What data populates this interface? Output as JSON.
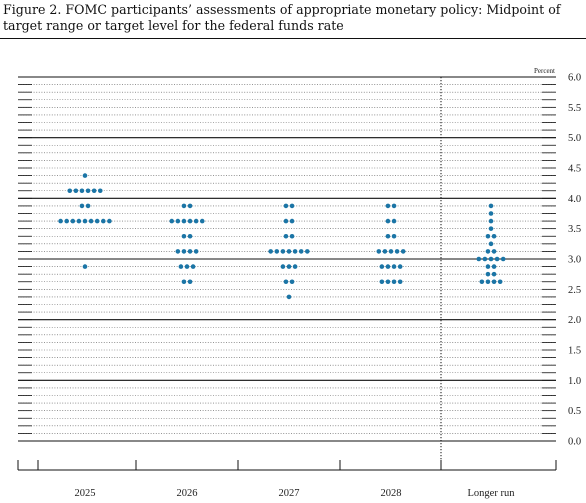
{
  "title": "Figure 2. FOMC participants’ assessments of appropriate monetary policy: Midpoint of target range or target level for the federal funds rate",
  "colors": {
    "dot": "#1b75a6",
    "axis": "#111111",
    "grid_minor": "#555555"
  },
  "chart_data": {
    "type": "scatter",
    "title": "Figure 2. FOMC participants’ assessments of appropriate monetary policy: Midpoint of target range or target level for the federal funds rate",
    "unit_label": "Percent",
    "xlabel": "",
    "ylabel": "",
    "ylim": [
      0.0,
      6.0
    ],
    "y_ticks": [
      "0.0",
      "0.5",
      "1.0",
      "1.5",
      "2.0",
      "2.5",
      "3.0",
      "3.5",
      "4.0",
      "4.5",
      "5.0",
      "5.5",
      "6.0"
    ],
    "grid": "dotted minor lines every 0.125, solid lines at whole percents",
    "categories": [
      "2025",
      "2026",
      "2027",
      "2028",
      "Longer run"
    ],
    "dots": [
      {
        "category": "2025",
        "levels": [
          {
            "rate": 4.375,
            "count": 1
          },
          {
            "rate": 4.125,
            "count": 6
          },
          {
            "rate": 3.875,
            "count": 2
          },
          {
            "rate": 3.625,
            "count": 9
          },
          {
            "rate": 2.875,
            "count": 1
          }
        ]
      },
      {
        "category": "2026",
        "levels": [
          {
            "rate": 3.875,
            "count": 2
          },
          {
            "rate": 3.625,
            "count": 6
          },
          {
            "rate": 3.375,
            "count": 2
          },
          {
            "rate": 3.125,
            "count": 4
          },
          {
            "rate": 2.875,
            "count": 3
          },
          {
            "rate": 2.625,
            "count": 2
          }
        ]
      },
      {
        "category": "2027",
        "levels": [
          {
            "rate": 3.875,
            "count": 2
          },
          {
            "rate": 3.625,
            "count": 2
          },
          {
            "rate": 3.375,
            "count": 2
          },
          {
            "rate": 3.125,
            "count": 7
          },
          {
            "rate": 2.875,
            "count": 3
          },
          {
            "rate": 2.625,
            "count": 2
          },
          {
            "rate": 2.375,
            "count": 1
          }
        ]
      },
      {
        "category": "2028",
        "levels": [
          {
            "rate": 3.875,
            "count": 2
          },
          {
            "rate": 3.625,
            "count": 2
          },
          {
            "rate": 3.375,
            "count": 2
          },
          {
            "rate": 3.125,
            "count": 5
          },
          {
            "rate": 2.875,
            "count": 4
          },
          {
            "rate": 2.625,
            "count": 4
          }
        ]
      },
      {
        "category": "Longer run",
        "levels": [
          {
            "rate": 3.875,
            "count": 1
          },
          {
            "rate": 3.75,
            "count": 1
          },
          {
            "rate": 3.625,
            "count": 1
          },
          {
            "rate": 3.5,
            "count": 1
          },
          {
            "rate": 3.375,
            "count": 2
          },
          {
            "rate": 3.25,
            "count": 1
          },
          {
            "rate": 3.125,
            "count": 2
          },
          {
            "rate": 3.0,
            "count": 5
          },
          {
            "rate": 2.875,
            "count": 2
          },
          {
            "rate": 2.75,
            "count": 2
          },
          {
            "rate": 2.625,
            "count": 4
          }
        ]
      }
    ]
  }
}
